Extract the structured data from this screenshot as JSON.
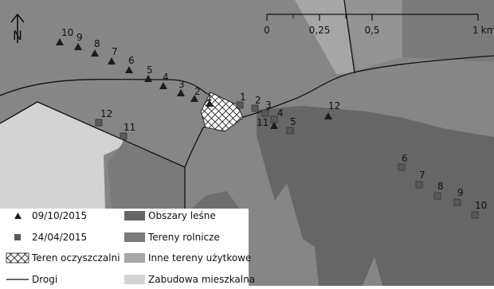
{
  "map": {
    "north_arrow": {
      "label": "N",
      "icon": "north-arrow-icon"
    },
    "scale_bar": {
      "ticks": [
        "0",
        "0,25",
        "0,5",
        "1"
      ],
      "unit": "km"
    },
    "series_2015_10_09": {
      "labels": [
        "1",
        "2",
        "3",
        "4",
        "5",
        "6",
        "7",
        "8",
        "9",
        "10",
        "11",
        "12"
      ],
      "marker": "triangle",
      "color": "#1c1c1c"
    },
    "series_2015_04_24": {
      "labels": [
        "1",
        "2",
        "3",
        "4",
        "5",
        "6",
        "7",
        "8",
        "9",
        "10",
        "11",
        "12"
      ],
      "marker": "square",
      "color": "#5a5a5a"
    },
    "colors": {
      "base": "#868686",
      "forest": "#666666",
      "agricultural": "#7b7b7b",
      "other_use": "#a6a6a6",
      "residential": "#d3d3d3",
      "treatment_plant_fill": "#ffffff"
    }
  },
  "legend": {
    "items": [
      {
        "icon": "triangle",
        "label": "09/10/2015"
      },
      {
        "icon": "square",
        "label": "24/04/2015"
      },
      {
        "icon": "crosshatch",
        "label": "Teren oczyszczalni"
      },
      {
        "icon": "line",
        "label": "Drogi"
      },
      {
        "icon": "swatch-forest",
        "label": "Obszary leśne"
      },
      {
        "icon": "swatch-agricultural",
        "label": "Tereny rolnicze"
      },
      {
        "icon": "swatch-other",
        "label": "Inne tereny użytkowe"
      },
      {
        "icon": "swatch-residential",
        "label": "Zabudowa mieszkalna"
      }
    ]
  }
}
